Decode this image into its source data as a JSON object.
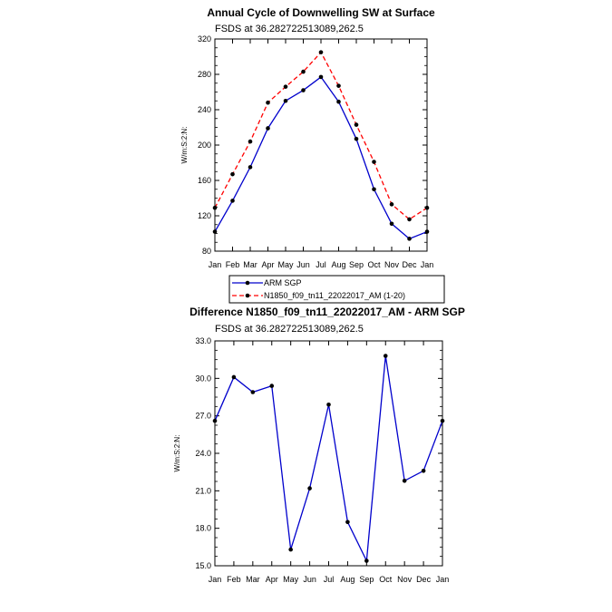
{
  "chart_data": [
    {
      "type": "line",
      "title": "Annual Cycle of Downwelling SW at Surface",
      "subtitle": "FSDS at 36.282722513089,262.5",
      "ylabel": "W/m:S:2:N:",
      "xlabel": "",
      "categories": [
        "Jan",
        "Feb",
        "Mar",
        "Apr",
        "May",
        "Jun",
        "Jul",
        "Aug",
        "Sep",
        "Oct",
        "Nov",
        "Dec",
        "Jan"
      ],
      "ylim": [
        80,
        320
      ],
      "yticks": [
        "80",
        "120",
        "160",
        "200",
        "240",
        "280",
        "320"
      ],
      "series": [
        {
          "name": "ARM SGP",
          "color": "#0000cc",
          "dash": "solid",
          "values": [
            102,
            137,
            175,
            219,
            250,
            262,
            277,
            249,
            207,
            150,
            111,
            94,
            102
          ]
        },
        {
          "name": "N1850_f09_tn11_22022017_AM (1-20)",
          "color": "#ff0000",
          "dash": "dashed",
          "values": [
            129,
            167,
            204,
            248,
            266,
            283,
            305,
            267,
            223,
            181,
            133,
            116,
            129
          ]
        }
      ],
      "legend_position": "bottom"
    },
    {
      "type": "line",
      "title": "Difference N1850_f09_tn11_22022017_AM - ARM SGP",
      "subtitle": "FSDS at 36.282722513089,262.5",
      "ylabel": "W/m:S:2:N:",
      "xlabel": "",
      "categories": [
        "Jan",
        "Feb",
        "Mar",
        "Apr",
        "May",
        "Jun",
        "Jul",
        "Aug",
        "Sep",
        "Oct",
        "Nov",
        "Dec",
        "Jan"
      ],
      "ylim": [
        15.0,
        33.0
      ],
      "yticks": [
        "15.0",
        "18.0",
        "21.0",
        "24.0",
        "27.0",
        "30.0",
        "33.0"
      ],
      "series": [
        {
          "color": "#0000cc",
          "dash": "solid",
          "values": [
            26.6,
            30.1,
            28.9,
            29.4,
            16.3,
            21.2,
            27.9,
            18.5,
            15.4,
            31.8,
            21.8,
            22.6,
            26.6
          ]
        }
      ]
    }
  ]
}
